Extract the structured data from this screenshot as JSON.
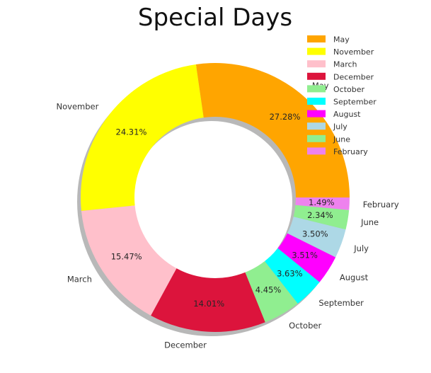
{
  "chart_data": {
    "type": "pie",
    "title": "Special Days",
    "donut": true,
    "shadow": true,
    "start_angle_deg": 0,
    "direction": "counterclockwise",
    "slices": [
      {
        "label": "May",
        "value": 27.28,
        "pct_label": "27.28%",
        "color": "#FFA500"
      },
      {
        "label": "November",
        "value": 24.31,
        "pct_label": "24.31%",
        "color": "#FFFF00"
      },
      {
        "label": "March",
        "value": 15.47,
        "pct_label": "15.47%",
        "color": "#FFC0CB"
      },
      {
        "label": "December",
        "value": 14.01,
        "pct_label": "14.01%",
        "color": "#DC143C"
      },
      {
        "label": "October",
        "value": 4.45,
        "pct_label": "4.45%",
        "color": "#90EE90"
      },
      {
        "label": "September",
        "value": 3.63,
        "pct_label": "3.63%",
        "color": "#00FFFF"
      },
      {
        "label": "August",
        "value": 3.51,
        "pct_label": "3.51%",
        "color": "#FF00FF"
      },
      {
        "label": "July",
        "value": 3.5,
        "pct_label": "3.50%",
        "color": "#ADD8E6"
      },
      {
        "label": "June",
        "value": 2.34,
        "pct_label": "2.34%",
        "color": "#90EE90"
      },
      {
        "label": "February",
        "value": 1.49,
        "pct_label": "1.49%",
        "color": "#EE82EE"
      }
    ],
    "legend": {
      "placement": "top-right",
      "entries": [
        "May",
        "November",
        "March",
        "December",
        "October",
        "September",
        "August",
        "July",
        "June",
        "February"
      ]
    }
  }
}
